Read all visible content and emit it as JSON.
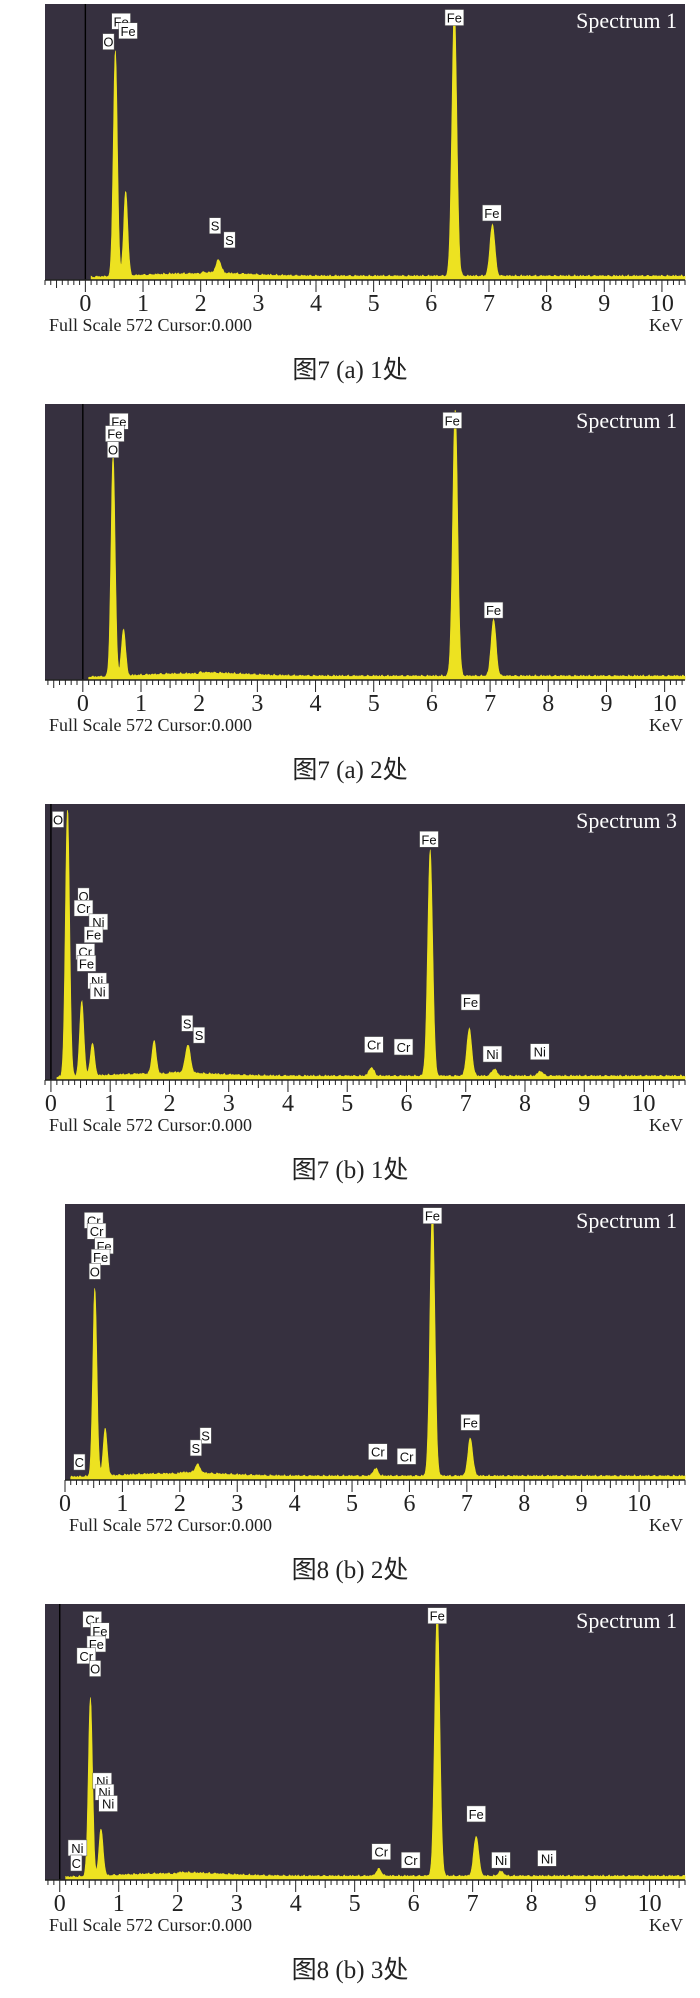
{
  "colors": {
    "plot_bg": "#36303f",
    "spectrum_fill": "#ede221",
    "axis": "#222222",
    "text": "#222222",
    "label_bg": "#ffffff"
  },
  "chart_data": [
    {
      "type": "area",
      "title": "Spectrum 1",
      "xlabel": "KeV",
      "footer": "Full Scale 572 Cursor:0.000",
      "caption": "图7 (a) 1处",
      "xlim": [
        -0.7,
        10.4
      ],
      "ylim": [
        0,
        572
      ],
      "x_ticks": [
        "0",
        "1",
        "2",
        "3",
        "4",
        "5",
        "6",
        "7",
        "8",
        "9",
        "10"
      ],
      "peaks": [
        {
          "x": 0.52,
          "y": 480,
          "w": 0.05
        },
        {
          "x": 0.7,
          "y": 180,
          "w": 0.05
        },
        {
          "x": 2.31,
          "y": 28,
          "w": 0.06
        },
        {
          "x": 6.4,
          "y": 572,
          "w": 0.06
        },
        {
          "x": 7.06,
          "y": 110,
          "w": 0.06
        }
      ],
      "element_labels": [
        {
          "text": "Fe",
          "x": 0.62,
          "y": 548
        },
        {
          "text": "Fe",
          "x": 0.74,
          "y": 528
        },
        {
          "text": "O",
          "x": 0.4,
          "y": 505
        },
        {
          "text": "S",
          "x": 2.25,
          "y": 115
        },
        {
          "text": "S",
          "x": 2.5,
          "y": 85
        },
        {
          "text": "Fe",
          "x": 6.4,
          "y": 556
        },
        {
          "text": "Fe",
          "x": 7.05,
          "y": 142
        }
      ]
    },
    {
      "type": "area",
      "title": "Spectrum 1",
      "xlabel": "KeV",
      "footer": "Full Scale 572 Cursor:0.000",
      "caption": "图7 (a) 2处",
      "xlim": [
        -0.65,
        10.35
      ],
      "ylim": [
        0,
        572
      ],
      "x_ticks": [
        "0",
        "1",
        "2",
        "3",
        "4",
        "5",
        "6",
        "7",
        "8",
        "9",
        "10"
      ],
      "peaks": [
        {
          "x": 0.52,
          "y": 470,
          "w": 0.05
        },
        {
          "x": 0.7,
          "y": 100,
          "w": 0.05
        },
        {
          "x": 6.4,
          "y": 572,
          "w": 0.06
        },
        {
          "x": 7.06,
          "y": 120,
          "w": 0.06
        }
      ],
      "element_labels": [
        {
          "text": "Fe",
          "x": 0.62,
          "y": 548
        },
        {
          "text": "Fe",
          "x": 0.55,
          "y": 522
        },
        {
          "text": "O",
          "x": 0.52,
          "y": 488
        },
        {
          "text": "Fe",
          "x": 6.35,
          "y": 550
        },
        {
          "text": "Fe",
          "x": 7.06,
          "y": 148
        }
      ]
    },
    {
      "type": "area",
      "title": "Spectrum 3",
      "xlabel": "KeV",
      "footer": "Full Scale 572 Cursor:0.000",
      "caption": "图7 (b) 1处",
      "xlim": [
        -0.1,
        10.7
      ],
      "ylim": [
        0,
        572
      ],
      "x_ticks": [
        "0",
        "1",
        "2",
        "3",
        "4",
        "5",
        "6",
        "7",
        "8",
        "9",
        "10"
      ],
      "peaks": [
        {
          "x": 0.28,
          "y": 572,
          "w": 0.05
        },
        {
          "x": 0.52,
          "y": 160,
          "w": 0.05
        },
        {
          "x": 0.7,
          "y": 70,
          "w": 0.05
        },
        {
          "x": 1.74,
          "y": 70,
          "w": 0.05
        },
        {
          "x": 2.31,
          "y": 60,
          "w": 0.06
        },
        {
          "x": 5.41,
          "y": 18,
          "w": 0.06
        },
        {
          "x": 6.4,
          "y": 480,
          "w": 0.06
        },
        {
          "x": 7.06,
          "y": 100,
          "w": 0.06
        },
        {
          "x": 7.48,
          "y": 15,
          "w": 0.06
        },
        {
          "x": 8.26,
          "y": 10,
          "w": 0.06
        }
      ],
      "element_labels": [
        {
          "text": "O",
          "x": 0.12,
          "y": 552
        },
        {
          "text": "O",
          "x": 0.55,
          "y": 390
        },
        {
          "text": "Cr",
          "x": 0.55,
          "y": 364
        },
        {
          "text": "Ni",
          "x": 0.8,
          "y": 335
        },
        {
          "text": "Fe",
          "x": 0.72,
          "y": 308
        },
        {
          "text": "Cr",
          "x": 0.58,
          "y": 272
        },
        {
          "text": "Fe",
          "x": 0.6,
          "y": 247
        },
        {
          "text": "Ni",
          "x": 0.78,
          "y": 210
        },
        {
          "text": "Ni",
          "x": 0.82,
          "y": 188
        },
        {
          "text": "S",
          "x": 2.3,
          "y": 120
        },
        {
          "text": "S",
          "x": 2.5,
          "y": 95
        },
        {
          "text": "Cr",
          "x": 5.45,
          "y": 75
        },
        {
          "text": "Cr",
          "x": 5.95,
          "y": 70
        },
        {
          "text": "Fe",
          "x": 6.38,
          "y": 510
        },
        {
          "text": "Fe",
          "x": 7.08,
          "y": 165
        },
        {
          "text": "Ni",
          "x": 7.45,
          "y": 55
        },
        {
          "text": "Ni",
          "x": 8.25,
          "y": 60
        }
      ]
    },
    {
      "type": "area",
      "title": "Spectrum 1",
      "xlabel": "KeV",
      "footer": "Full Scale 572 Cursor:0.000",
      "caption": "图8 (b) 2处",
      "xlim": [
        0,
        10.8
      ],
      "ylim": [
        0,
        572
      ],
      "x_ticks": [
        "0",
        "1",
        "2",
        "3",
        "4",
        "5",
        "6",
        "7",
        "8",
        "9",
        "10"
      ],
      "peaks": [
        {
          "x": 0.52,
          "y": 400,
          "w": 0.05
        },
        {
          "x": 0.7,
          "y": 100,
          "w": 0.05
        },
        {
          "x": 2.31,
          "y": 18,
          "w": 0.06
        },
        {
          "x": 5.41,
          "y": 16,
          "w": 0.06
        },
        {
          "x": 6.4,
          "y": 572,
          "w": 0.06
        },
        {
          "x": 7.06,
          "y": 80,
          "w": 0.06
        }
      ],
      "element_labels": [
        {
          "text": "Cr",
          "x": 0.5,
          "y": 550
        },
        {
          "text": "Cr",
          "x": 0.55,
          "y": 527
        },
        {
          "text": "Fe",
          "x": 0.68,
          "y": 496
        },
        {
          "text": "Fe",
          "x": 0.62,
          "y": 472
        },
        {
          "text": "O",
          "x": 0.52,
          "y": 442
        },
        {
          "text": "C",
          "x": 0.25,
          "y": 38
        },
        {
          "text": "S",
          "x": 2.45,
          "y": 94
        },
        {
          "text": "S",
          "x": 2.28,
          "y": 68
        },
        {
          "text": "Cr",
          "x": 5.45,
          "y": 60
        },
        {
          "text": "Cr",
          "x": 5.95,
          "y": 50
        },
        {
          "text": "Fe",
          "x": 6.4,
          "y": 560
        },
        {
          "text": "Fe",
          "x": 7.06,
          "y": 122
        }
      ]
    },
    {
      "type": "area",
      "title": "Spectrum 1",
      "xlabel": "KeV",
      "footer": "Full Scale 572 Cursor:0.000",
      "caption": "图8 (b) 3处",
      "xlim": [
        -0.25,
        10.6
      ],
      "ylim": [
        0,
        572
      ],
      "x_ticks": [
        "0",
        "1",
        "2",
        "3",
        "4",
        "5",
        "6",
        "7",
        "8",
        "9",
        "10"
      ],
      "peaks": [
        {
          "x": 0.52,
          "y": 380,
          "w": 0.05
        },
        {
          "x": 0.7,
          "y": 100,
          "w": 0.05
        },
        {
          "x": 5.41,
          "y": 15,
          "w": 0.06
        },
        {
          "x": 6.4,
          "y": 572,
          "w": 0.06
        },
        {
          "x": 7.06,
          "y": 85,
          "w": 0.06
        },
        {
          "x": 7.48,
          "y": 10,
          "w": 0.06
        }
      ],
      "element_labels": [
        {
          "text": "Cr",
          "x": 0.55,
          "y": 552
        },
        {
          "text": "Fe",
          "x": 0.68,
          "y": 528
        },
        {
          "text": "Fe",
          "x": 0.62,
          "y": 500
        },
        {
          "text": "Cr",
          "x": 0.45,
          "y": 475
        },
        {
          "text": "O",
          "x": 0.6,
          "y": 448
        },
        {
          "text": "Ni",
          "x": 0.72,
          "y": 210
        },
        {
          "text": "Ni",
          "x": 0.76,
          "y": 186
        },
        {
          "text": "Ni",
          "x": 0.82,
          "y": 162
        },
        {
          "text": "Ni",
          "x": 0.3,
          "y": 68
        },
        {
          "text": "C",
          "x": 0.28,
          "y": 36
        },
        {
          "text": "Cr",
          "x": 5.45,
          "y": 60
        },
        {
          "text": "Cr",
          "x": 5.95,
          "y": 42
        },
        {
          "text": "Fe",
          "x": 6.4,
          "y": 560
        },
        {
          "text": "Fe",
          "x": 7.06,
          "y": 140
        },
        {
          "text": "Ni",
          "x": 7.48,
          "y": 42
        },
        {
          "text": "Ni",
          "x": 8.26,
          "y": 46
        }
      ]
    }
  ]
}
